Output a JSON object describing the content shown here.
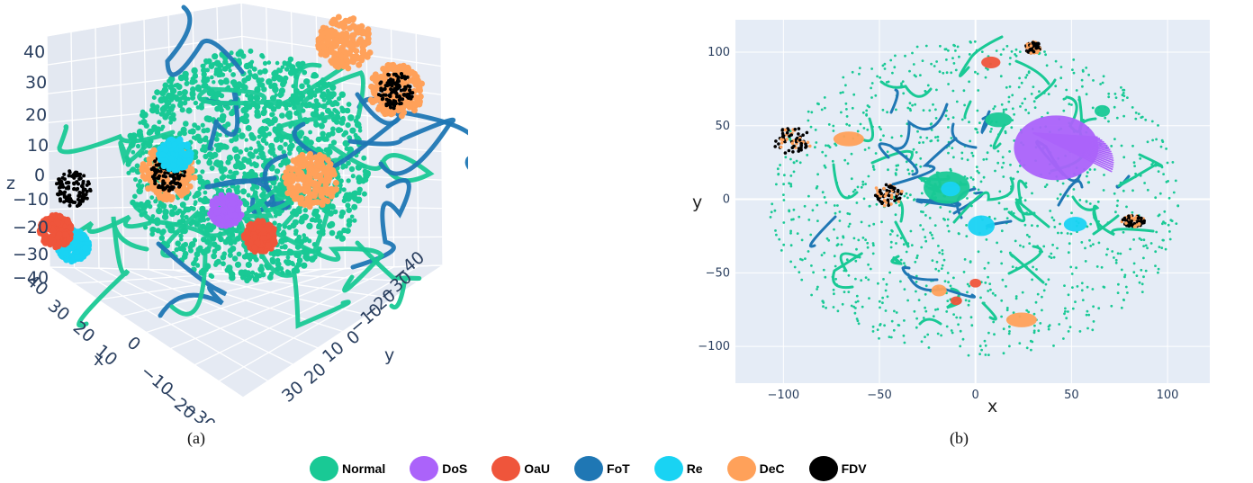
{
  "captions": {
    "a": "(a)",
    "b": "(b)"
  },
  "legend": [
    {
      "label": "Normal",
      "color": "#19c995"
    },
    {
      "label": "DoS",
      "color": "#ab63fa"
    },
    {
      "label": "OaU",
      "color": "#ef553b"
    },
    {
      "label": "FoT",
      "color": "#1f77b4"
    },
    {
      "label": "Re",
      "color": "#19d3f3"
    },
    {
      "label": "DeC",
      "color": "#ffa15a"
    },
    {
      "label": "FDV",
      "color": "#000000"
    }
  ],
  "chart_data": [
    {
      "type": "scatter3d",
      "axes": {
        "z": {
          "label": "z",
          "ticks": [
            "40",
            "30",
            "20",
            "10",
            "0",
            "−10",
            "−20",
            "−30",
            "−40"
          ]
        },
        "x": {
          "label": "x",
          "ticks": [
            "40",
            "30",
            "20",
            "10",
            "0",
            "−10",
            "−20",
            "−30"
          ]
        },
        "y": {
          "label": "y",
          "ticks": [
            "−40",
            "−30",
            "−20",
            "−10",
            "0",
            "10",
            "20",
            "30"
          ]
        }
      },
      "series": [
        {
          "name": "Normal",
          "color": "#19c995",
          "role": "background cloud"
        },
        {
          "name": "FoT",
          "color": "#1f77b4",
          "role": "curves"
        },
        {
          "name": "DeC",
          "color": "#ffa15a",
          "clusters": [
            [
              -10,
              20,
              35
            ],
            [
              10,
              -12,
              0
            ],
            [
              -5,
              15,
              2
            ],
            [
              -20,
              25,
              22
            ]
          ]
        },
        {
          "name": "FDV",
          "color": "#000000",
          "clusters": [
            [
              -20,
              25,
              22
            ],
            [
              30,
              -20,
              0
            ],
            [
              10,
              -12,
              0
            ]
          ]
        },
        {
          "name": "Re",
          "color": "#19d3f3",
          "clusters": [
            [
              20,
              -30,
              -20
            ],
            [
              10,
              -10,
              5
            ]
          ]
        },
        {
          "name": "OaU",
          "color": "#ef553b",
          "clusters": [
            [
              25,
              -30,
              -15
            ],
            [
              5,
              10,
              -10
            ]
          ]
        },
        {
          "name": "DoS",
          "color": "#ab63fa",
          "clusters": [
            [
              0,
              -5,
              -10
            ]
          ]
        }
      ],
      "grid": true
    },
    {
      "type": "scatter",
      "xlabel": "x",
      "ylabel": "y",
      "xlim": [
        -125,
        122
      ],
      "ylim": [
        -125,
        122
      ],
      "xticks": [
        "−100",
        "−50",
        "0",
        "50",
        "100"
      ],
      "yticks": [
        "100",
        "50",
        "0",
        "−50",
        "−100"
      ],
      "grid": true,
      "clusters": [
        {
          "series": "FDV",
          "x": -96,
          "y": 40,
          "rx": 11,
          "ry": 9
        },
        {
          "series": "DeC",
          "x": -66,
          "y": 41,
          "rx": 8,
          "ry": 5
        },
        {
          "series": "FDV",
          "x": -46,
          "y": 3,
          "rx": 8,
          "ry": 8
        },
        {
          "series": "Normal",
          "x": -15,
          "y": 8,
          "rx": 12,
          "ry": 11
        },
        {
          "series": "Re",
          "x": -13,
          "y": 7,
          "rx": 5,
          "ry": 5
        },
        {
          "series": "Re",
          "x": 3,
          "y": -18,
          "rx": 7,
          "ry": 7
        },
        {
          "series": "Re",
          "x": 52,
          "y": -17,
          "rx": 6,
          "ry": 5
        },
        {
          "series": "DoS",
          "x": 42,
          "y": 35,
          "rx": 22,
          "ry": 22
        },
        {
          "series": "OaU",
          "x": 8,
          "y": 93,
          "rx": 5,
          "ry": 4
        },
        {
          "series": "FDV",
          "x": 30,
          "y": 103,
          "rx": 4,
          "ry": 4
        },
        {
          "series": "FDV",
          "x": 82,
          "y": -15,
          "rx": 6,
          "ry": 4
        },
        {
          "series": "DeC",
          "x": 24,
          "y": -82,
          "rx": 8,
          "ry": 5
        },
        {
          "series": "DeC",
          "x": -19,
          "y": -62,
          "rx": 4,
          "ry": 4
        },
        {
          "series": "OaU",
          "x": -10,
          "y": -69,
          "rx": 3,
          "ry": 3
        },
        {
          "series": "OaU",
          "x": 0,
          "y": -57,
          "rx": 3,
          "ry": 3
        },
        {
          "series": "Normal",
          "x": 12,
          "y": 54,
          "rx": 7,
          "ry": 5
        },
        {
          "series": "Normal",
          "x": 66,
          "y": 60,
          "rx": 4,
          "ry": 4
        }
      ]
    }
  ]
}
